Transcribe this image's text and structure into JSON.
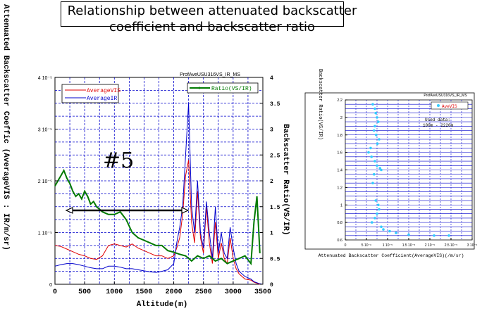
{
  "slide_title": "Relationship between attenuated backscatter coefficient and backscatter ratio",
  "annotation_number": "#5",
  "chart_data": [
    {
      "type": "line",
      "title": "ProfAveUSU316VS_IR_MS",
      "xlabel": "Altitude(m)",
      "ylabel_left": "Attenuated Backscatter Coeffic (AverageVIS : IR/m/sr)",
      "ylabel_right": "Backscatter Ratio(VS/IR)",
      "xlim": [
        0,
        3500
      ],
      "ylim_left": [
        0,
        4e-05
      ],
      "ylim_right": [
        0,
        4
      ],
      "x_ticks": [
        "0",
        "500",
        "1000",
        "1500",
        "2000",
        "2500",
        "3000",
        "3500"
      ],
      "y_left_ticks": [
        "0",
        "1 10⁻⁵",
        "2 10⁻⁵",
        "3 10⁻⁵",
        "4 10⁻⁵"
      ],
      "y_right_ticks": [
        "0",
        "0.5",
        "1",
        "1.5",
        "2",
        "2.5",
        "3",
        "3.5",
        "4"
      ],
      "grid": true,
      "legend_left": [
        "AverageVIS",
        "AverageIR"
      ],
      "legend_right": [
        "Ratio(VS/IR)"
      ],
      "series": [
        {
          "name": "AverageVIS",
          "axis": "left",
          "color": "#e00000",
          "x": [
            0,
            100,
            200,
            300,
            400,
            500,
            600,
            700,
            800,
            900,
            1000,
            1100,
            1200,
            1300,
            1400,
            1500,
            1600,
            1700,
            1800,
            1900,
            2000,
            2050,
            2100,
            2150,
            2200,
            2250,
            2300,
            2350,
            2400,
            2450,
            2500,
            2550,
            2600,
            2650,
            2700,
            2750,
            2800,
            2850,
            2900,
            2950,
            3000,
            3050,
            3100,
            3200,
            3300,
            3350,
            3400,
            3450,
            3500
          ],
          "y": [
            7.5e-06,
            7.3e-06,
            6.8e-06,
            6.3e-06,
            5.8e-06,
            5.5e-06,
            5e-06,
            4.8e-06,
            5.5e-06,
            7.5e-06,
            7.8e-06,
            7.5e-06,
            7.2e-06,
            7.8e-06,
            7e-06,
            6.5e-06,
            6e-06,
            5.5e-06,
            5.5e-06,
            5e-06,
            5.5e-06,
            7e-06,
            9e-06,
            1.35e-05,
            2.1e-05,
            2.4e-05,
            1.2e-05,
            8e-06,
            1.8e-05,
            9e-06,
            6e-06,
            1.5e-05,
            8e-06,
            4e-06,
            1.2e-05,
            5e-06,
            8e-06,
            5e-06,
            4e-06,
            9e-06,
            5e-06,
            3e-06,
            2e-06,
            1e-06,
            8e-07,
            4e-07,
            2e-07,
            0,
            0
          ]
        },
        {
          "name": "AverageIR",
          "axis": "left",
          "color": "#0000cc",
          "x": [
            0,
            100,
            200,
            300,
            400,
            500,
            600,
            700,
            800,
            900,
            1000,
            1100,
            1200,
            1300,
            1400,
            1500,
            1600,
            1700,
            1800,
            1900,
            2000,
            2050,
            2100,
            2150,
            2200,
            2250,
            2300,
            2350,
            2400,
            2450,
            2500,
            2550,
            2600,
            2650,
            2700,
            2750,
            2800,
            2850,
            2900,
            2950,
            3000,
            3050,
            3100,
            3200,
            3300,
            3350,
            3400,
            3450,
            3500
          ],
          "y": [
            3.5e-06,
            3.8e-06,
            4e-06,
            4e-06,
            3.8e-06,
            3.5e-06,
            3.2e-06,
            3e-06,
            3e-06,
            3.5e-06,
            3.5e-06,
            3.3e-06,
            3e-06,
            3e-06,
            2.8e-06,
            2.6e-06,
            2.4e-06,
            2.3e-06,
            2.5e-06,
            2.8e-06,
            4e-06,
            8e-06,
            1.1e-05,
            1.5e-05,
            2.5e-05,
            3.5e-05,
            1.5e-05,
            1e-05,
            2e-05,
            1e-05,
            7e-06,
            1.6e-05,
            1e-05,
            5e-06,
            1.5e-05,
            6e-06,
            1e-05,
            6e-06,
            5e-06,
            1.1e-05,
            7e-06,
            4e-06,
            2.5e-06,
            1.5e-06,
            1e-06,
            5e-07,
            3e-07,
            1e-07,
            0
          ]
        },
        {
          "name": "Ratio(VS/IR)",
          "axis": "right",
          "color": "#007a00",
          "x": [
            0,
            50,
            100,
            150,
            200,
            250,
            300,
            350,
            400,
            450,
            500,
            550,
            600,
            650,
            700,
            750,
            800,
            900,
            1000,
            1100,
            1200,
            1300,
            1400,
            1500,
            1600,
            1700,
            1800,
            1900,
            2000,
            2100,
            2200,
            2250,
            2300,
            2400,
            2500,
            2600,
            2700,
            2800,
            2900,
            3000,
            3100,
            3200,
            3300,
            3350,
            3400,
            3450
          ],
          "y": [
            1.9,
            2.0,
            2.1,
            2.2,
            2.05,
            1.95,
            1.8,
            1.7,
            1.75,
            1.65,
            1.8,
            1.7,
            1.55,
            1.6,
            1.5,
            1.45,
            1.4,
            1.35,
            1.35,
            1.4,
            1.25,
            1.0,
            0.9,
            0.85,
            0.8,
            0.75,
            0.75,
            0.65,
            0.62,
            0.58,
            0.55,
            0.5,
            0.45,
            0.55,
            0.5,
            0.55,
            0.45,
            0.5,
            0.4,
            0.45,
            0.5,
            0.55,
            0.4,
            1.2,
            1.7,
            0.6
          ]
        }
      ]
    },
    {
      "type": "scatter",
      "title": "ProfAveUSU316VS_IR_MS",
      "xlabel": "Attenuated Backscatter Coefficient(AverageVIS)(/m/sr)",
      "ylabel": "Backscatter Ratio(VS/IR)",
      "xlim": [
        0,
        3e-05
      ],
      "ylim": [
        0.6,
        2.2
      ],
      "x_ticks": [
        "0",
        "5 10⁻⁶",
        "1 10⁻⁵",
        "1.5 10⁻⁵",
        "2 10⁻⁵",
        "2.5 10⁻⁵",
        "3 10⁻⁵"
      ],
      "y_ticks": [
        "0.6",
        "0.8",
        "1",
        "1.2",
        "1.4",
        "1.6",
        "1.8",
        "2",
        "2.2"
      ],
      "grid": true,
      "legend": [
        "AveVIS"
      ],
      "annotation": [
        "Used data:",
        "100m - 2220m"
      ],
      "series": [
        {
          "name": "AveVIS",
          "color": "#33ccff",
          "x": [
            6.5e-06,
            7e-06,
            7.2e-06,
            7.5e-06,
            7.8e-06,
            7e-06,
            6.8e-06,
            7.3e-06,
            8e-06,
            7.6e-06,
            6e-06,
            5.5e-06,
            6.2e-06,
            7e-06,
            7.5e-06,
            8.2e-06,
            8.5e-06,
            6.8e-06,
            6.5e-06,
            7.2e-06,
            7.8e-06,
            8e-06,
            7.5e-06,
            7e-06,
            6.3e-06,
            8.5e-06,
            9e-06,
            1.05e-05,
            1.2e-05,
            1.5e-05,
            2.1e-05,
            2.45e-05
          ],
          "y": [
            2.15,
            2.1,
            2.05,
            2.0,
            1.95,
            1.9,
            1.85,
            1.8,
            1.75,
            1.7,
            1.65,
            1.6,
            1.55,
            1.5,
            1.45,
            1.42,
            1.4,
            1.35,
            1.25,
            1.05,
            1.0,
            0.95,
            0.9,
            0.85,
            0.8,
            0.75,
            0.72,
            0.7,
            0.68,
            0.66,
            0.65,
            0.65
          ]
        }
      ]
    }
  ]
}
